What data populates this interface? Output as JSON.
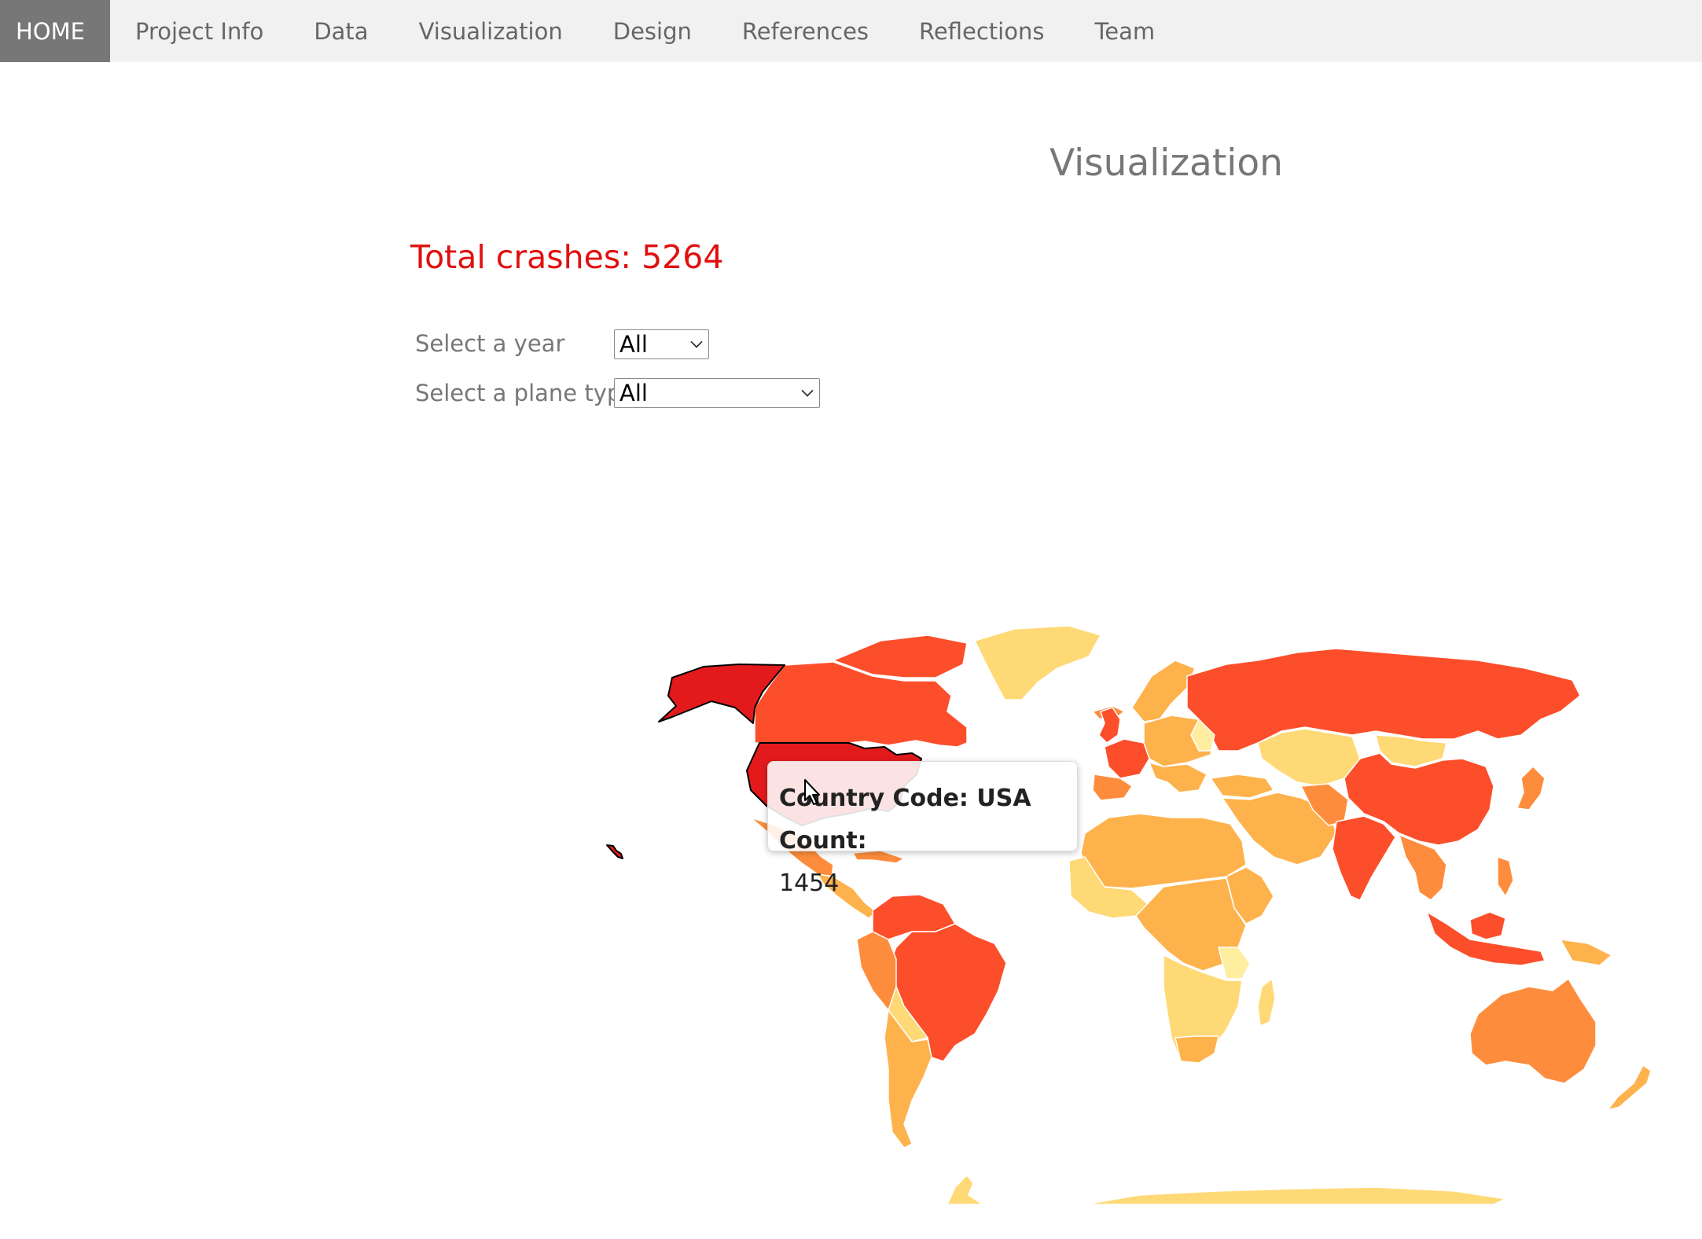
{
  "nav": {
    "items": [
      {
        "label": "HOME",
        "active": true
      },
      {
        "label": "Project Info"
      },
      {
        "label": "Data"
      },
      {
        "label": "Visualization"
      },
      {
        "label": "Design"
      },
      {
        "label": "References"
      },
      {
        "label": "Reflections"
      },
      {
        "label": "Team"
      }
    ]
  },
  "page": {
    "title": "Visualization",
    "total_label": "Total crashes: 5264"
  },
  "filters": {
    "year_label": "Select a year",
    "year_value": "All",
    "plane_label": "Select a plane type",
    "plane_value": "All"
  },
  "tooltip": {
    "text": "Country Code: USA Count:",
    "count": "1454"
  },
  "colors": {
    "highest": "#e31a1c",
    "high": "#fc4e2a",
    "mid_high": "#fd8d3c",
    "mid": "#feb24c",
    "low": "#fed976",
    "lowest": "#ffeda0",
    "accent_red": "#e0100f"
  },
  "map": {
    "type": "choropleth",
    "hovered_country": "USA"
  }
}
